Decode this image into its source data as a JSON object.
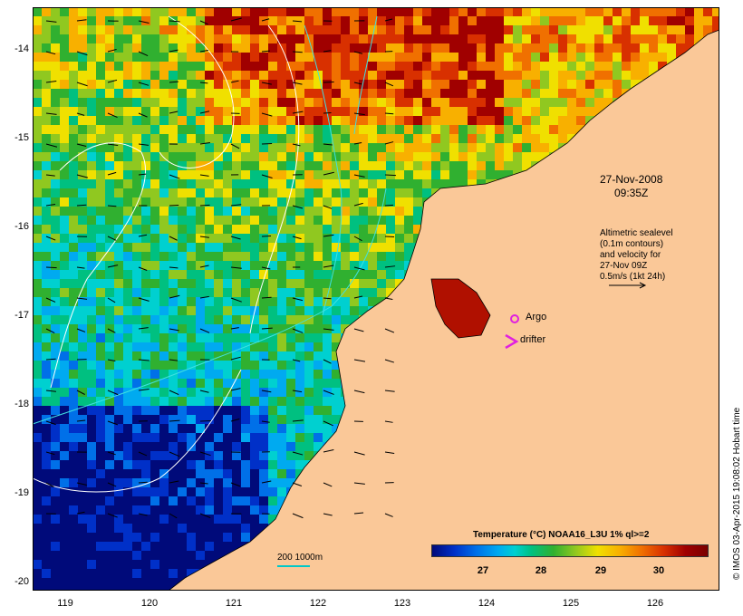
{
  "map": {
    "date_line1": "27-Nov-2008",
    "date_line2": "09:35Z",
    "altimetry_lines": [
      "Altimetric sealevel",
      "(0.1m contours)",
      "and velocity for",
      "27-Nov 09Z",
      "0.5m/s (1kt 24h)"
    ],
    "legend_argo": "Argo",
    "legend_drifter": "drifter",
    "colorbar_title": "Temperature (°C) NOAA16_L3U 1% ql>=2",
    "colorbar_ticks": [
      "27",
      "28",
      "29",
      "30"
    ],
    "scale_label": "200  1000m",
    "credit": "© IMOS 03-Apr-2015 19:08:02 Hobart time",
    "lat_ticks": [
      "-14",
      "-15",
      "-16",
      "-17",
      "-18",
      "-19",
      "-20"
    ],
    "lon_ticks": [
      "119",
      "120",
      "121",
      "122",
      "123",
      "124",
      "125",
      "126"
    ],
    "colors": {
      "land": "#fac898",
      "argo": "#e020e0",
      "drifter": "#e020e0"
    }
  }
}
